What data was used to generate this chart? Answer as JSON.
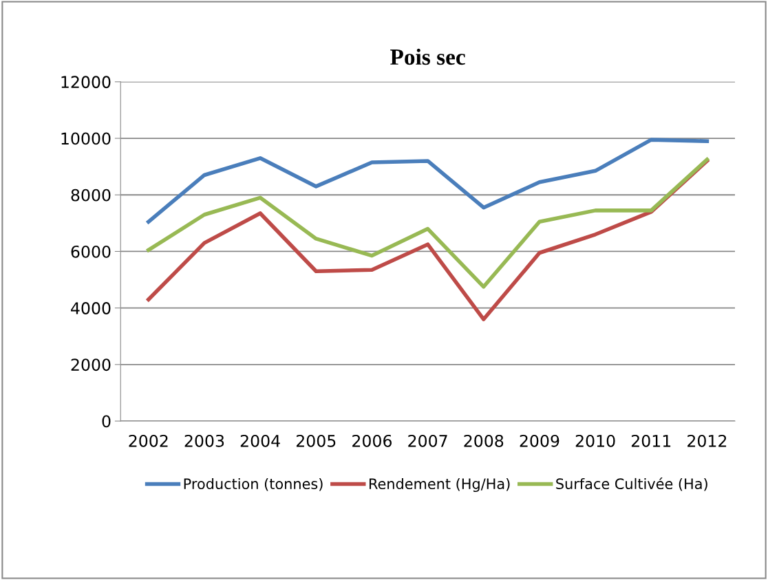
{
  "chart_data": {
    "type": "line",
    "title": "Pois sec",
    "categories": [
      "2002",
      "2003",
      "2004",
      "2005",
      "2006",
      "2007",
      "2008",
      "2009",
      "2010",
      "2011",
      "2012"
    ],
    "series": [
      {
        "name": "Production (tonnes)",
        "color": "#4a7ebb",
        "values": [
          7050,
          8700,
          9300,
          8300,
          9150,
          9200,
          7550,
          8450,
          8850,
          9950,
          9900
        ]
      },
      {
        "name": "Rendement (Hg/Ha)",
        "color": "#be4b48",
        "values": [
          4300,
          6300,
          7350,
          5300,
          5350,
          6250,
          3600,
          5950,
          6600,
          7400,
          9200
        ]
      },
      {
        "name": "Surface Cultivée (Ha)",
        "color": "#98b954",
        "values": [
          6050,
          7300,
          7900,
          6450,
          5850,
          6800,
          4750,
          7050,
          7450,
          7450,
          9250
        ]
      }
    ],
    "ylim": [
      0,
      12000
    ],
    "yticks": [
      0,
      2000,
      4000,
      6000,
      8000,
      10000,
      12000
    ],
    "grid": "y",
    "legend": "bottom",
    "marker": "none",
    "line_style": "solid"
  }
}
